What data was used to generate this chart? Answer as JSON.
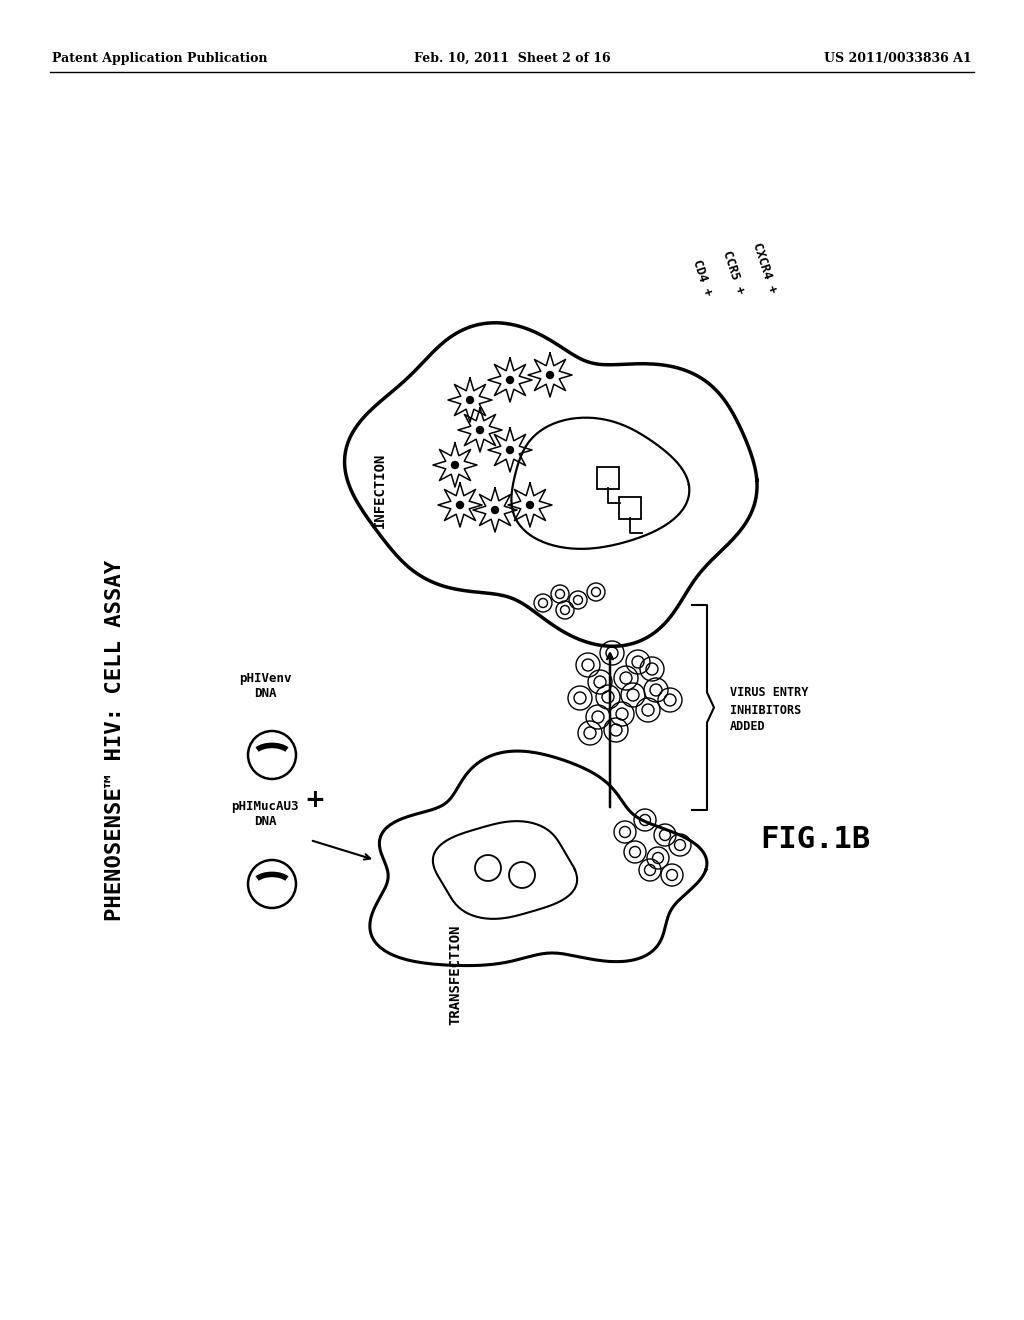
{
  "bg_color": "#ffffff",
  "header_left": "Patent Application Publication",
  "header_mid": "Feb. 10, 2011  Sheet 2 of 16",
  "header_right": "US 2011/0033836 A1",
  "title_rotated": "PHENOSENSE™ HIV: CELL ASSAY",
  "label_pHIVenv": "pHIVenv\nDNA",
  "label_pHIMucAU3": "pHIMucAU3\nDNA",
  "label_plus": "+",
  "label_transfection": "TRANSFECTION",
  "label_infection": "INFECTION",
  "label_virus_entry": "VIRUS ENTRY\nINHIBITORS\nADDED",
  "label_cd4": "CD4 +",
  "label_ccr5": "CCR5 +",
  "label_cxcr4": "CXCR4 +",
  "label_fig": "FIG.1B"
}
